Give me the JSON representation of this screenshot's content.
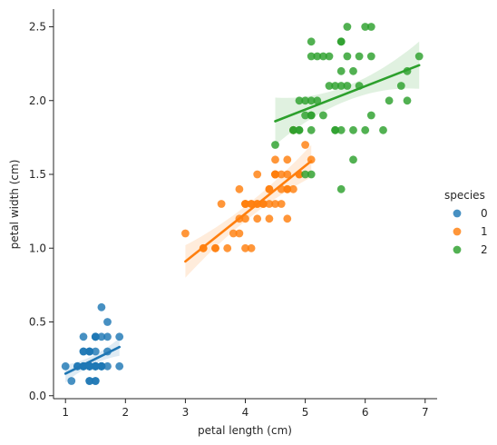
{
  "chart_data": {
    "type": "scatter",
    "title": "",
    "xlabel": "petal length (cm)",
    "ylabel": "petal width (cm)",
    "xlim": [
      0.8,
      7.2
    ],
    "ylim": [
      -0.02,
      2.62
    ],
    "x_ticks": [
      1,
      2,
      3,
      4,
      5,
      6,
      7
    ],
    "y_ticks": [
      0.0,
      0.5,
      1.0,
      1.5,
      2.0,
      2.5
    ],
    "x_tick_labels": [
      "1",
      "2",
      "3",
      "4",
      "5",
      "6",
      "7"
    ],
    "y_tick_labels": [
      "0.0",
      "0.5",
      "1.0",
      "1.5",
      "2.0",
      "2.5"
    ],
    "grid": false,
    "legend": {
      "title": "species",
      "placement": "right"
    },
    "regression_lines": true,
    "confidence_bands": true,
    "series": [
      {
        "name": "0",
        "color": "#1f77b4",
        "x": [
          1.4,
          1.4,
          1.3,
          1.5,
          1.4,
          1.7,
          1.4,
          1.5,
          1.4,
          1.5,
          1.5,
          1.6,
          1.4,
          1.1,
          1.2,
          1.5,
          1.3,
          1.4,
          1.7,
          1.5,
          1.7,
          1.5,
          1.0,
          1.7,
          1.9,
          1.6,
          1.6,
          1.5,
          1.4,
          1.6,
          1.6,
          1.5,
          1.5,
          1.4,
          1.5,
          1.2,
          1.3,
          1.4,
          1.3,
          1.5,
          1.3,
          1.3,
          1.3,
          1.6,
          1.9,
          1.4,
          1.6,
          1.4,
          1.5,
          1.4
        ],
        "y": [
          0.2,
          0.2,
          0.2,
          0.2,
          0.2,
          0.4,
          0.3,
          0.2,
          0.2,
          0.1,
          0.2,
          0.2,
          0.1,
          0.1,
          0.2,
          0.4,
          0.4,
          0.3,
          0.3,
          0.3,
          0.2,
          0.4,
          0.2,
          0.5,
          0.2,
          0.2,
          0.4,
          0.2,
          0.2,
          0.2,
          0.2,
          0.4,
          0.1,
          0.2,
          0.2,
          0.2,
          0.2,
          0.1,
          0.2,
          0.2,
          0.3,
          0.3,
          0.2,
          0.6,
          0.4,
          0.3,
          0.2,
          0.2,
          0.2,
          0.2
        ],
        "fit": {
          "x": [
            1.0,
            1.9
          ],
          "y": [
            0.15,
            0.33
          ]
        }
      },
      {
        "name": "1",
        "color": "#ff7f0e",
        "x": [
          4.7,
          4.5,
          4.9,
          4.0,
          4.6,
          4.5,
          4.7,
          3.3,
          4.6,
          3.9,
          3.5,
          4.2,
          4.0,
          4.7,
          3.6,
          4.4,
          4.5,
          4.1,
          4.5,
          3.9,
          4.8,
          4.0,
          4.9,
          4.7,
          4.3,
          4.4,
          4.8,
          5.0,
          4.5,
          3.5,
          3.8,
          3.7,
          3.9,
          5.1,
          4.5,
          4.5,
          4.7,
          4.4,
          4.1,
          4.0,
          4.4,
          4.6,
          4.0,
          3.3,
          4.2,
          4.2,
          4.2,
          4.3,
          3.0,
          4.1
        ],
        "y": [
          1.4,
          1.5,
          1.5,
          1.3,
          1.5,
          1.3,
          1.6,
          1.0,
          1.3,
          1.4,
          1.0,
          1.5,
          1.0,
          1.4,
          1.3,
          1.4,
          1.5,
          1.0,
          1.5,
          1.1,
          1.8,
          1.3,
          1.5,
          1.2,
          1.3,
          1.4,
          1.4,
          1.7,
          1.5,
          1.0,
          1.1,
          1.0,
          1.2,
          1.6,
          1.5,
          1.6,
          1.5,
          1.3,
          1.3,
          1.3,
          1.2,
          1.4,
          1.2,
          1.0,
          1.3,
          1.2,
          1.3,
          1.3,
          1.1,
          1.3
        ],
        "fit": {
          "x": [
            3.0,
            5.1
          ],
          "y": [
            0.91,
            1.59
          ]
        }
      },
      {
        "name": "2",
        "color": "#2ca02c",
        "x": [
          6.0,
          5.1,
          5.9,
          5.6,
          5.8,
          6.6,
          4.5,
          6.3,
          5.8,
          6.1,
          5.1,
          5.3,
          5.5,
          5.0,
          5.1,
          5.3,
          5.5,
          6.7,
          6.9,
          5.0,
          5.7,
          4.9,
          6.7,
          4.9,
          5.7,
          6.0,
          4.8,
          4.9,
          5.6,
          5.8,
          6.1,
          6.4,
          5.6,
          5.1,
          5.6,
          6.1,
          5.6,
          5.5,
          4.8,
          5.4,
          5.6,
          5.1,
          5.1,
          5.9,
          5.7,
          5.2,
          5.0,
          5.2,
          5.4,
          5.1
        ],
        "y": [
          2.5,
          1.9,
          2.1,
          1.8,
          2.2,
          2.1,
          1.7,
          1.8,
          1.8,
          2.5,
          2.0,
          1.9,
          2.1,
          2.0,
          2.4,
          2.3,
          1.8,
          2.2,
          2.3,
          1.5,
          2.3,
          2.0,
          2.0,
          1.8,
          2.1,
          1.8,
          1.8,
          1.8,
          2.1,
          1.6,
          1.9,
          2.0,
          2.2,
          1.5,
          1.4,
          2.3,
          2.4,
          1.8,
          1.8,
          2.1,
          2.4,
          2.3,
          1.9,
          2.3,
          2.5,
          2.3,
          1.9,
          2.0,
          2.3,
          1.8
        ],
        "fit": {
          "x": [
            4.5,
            6.9
          ],
          "y": [
            1.86,
            2.24
          ]
        }
      }
    ]
  }
}
